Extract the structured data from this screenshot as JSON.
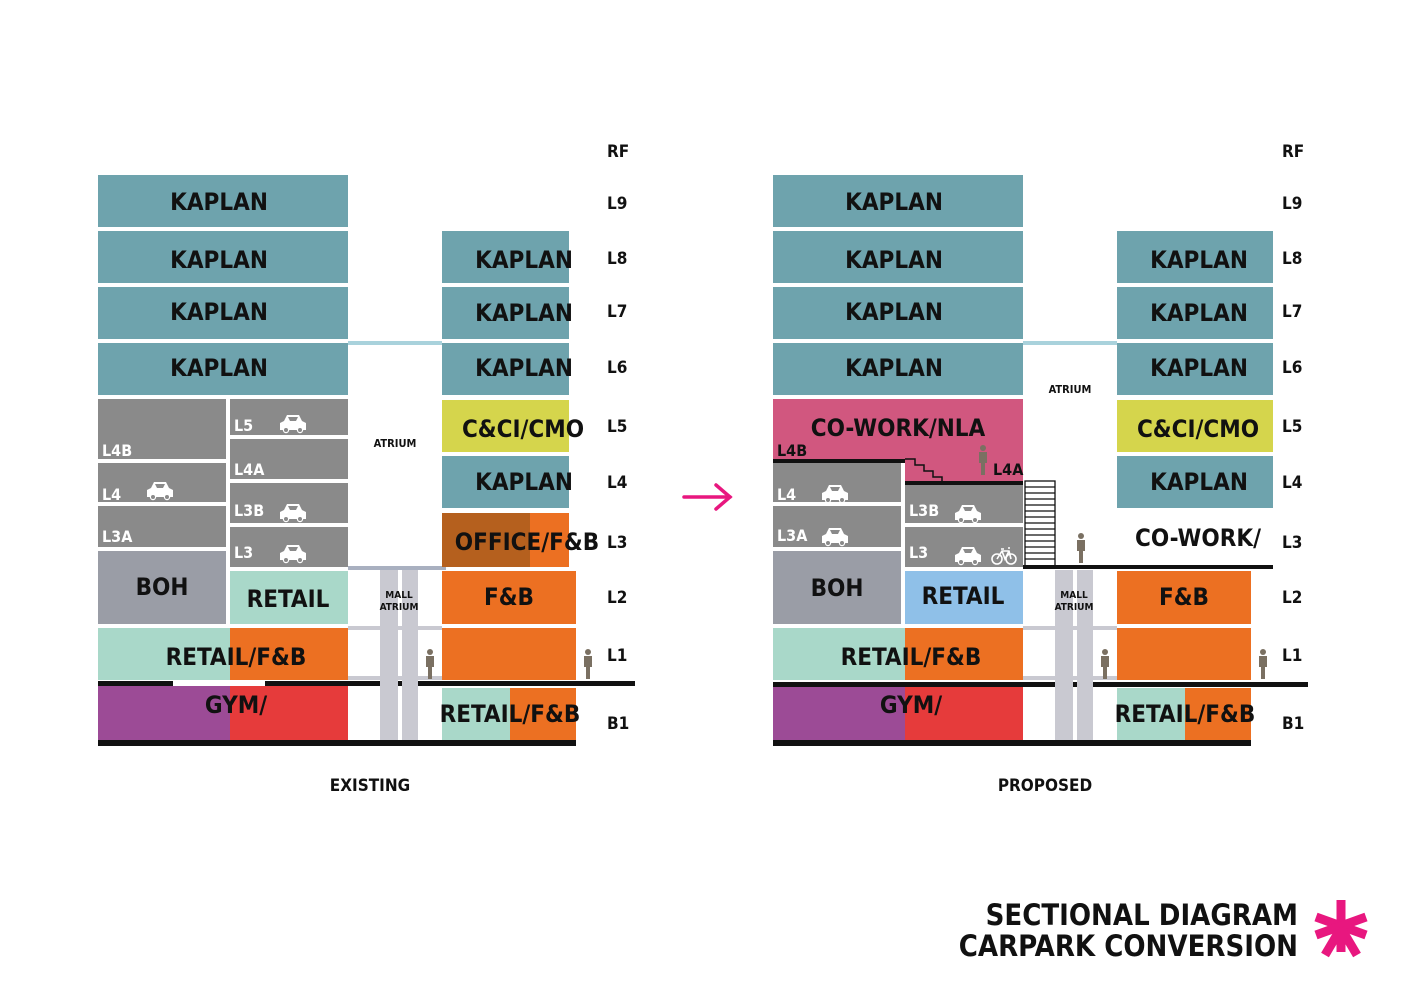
{
  "levels": [
    "RF",
    "L9",
    "L8",
    "L7",
    "L6",
    "L5",
    "L4",
    "L3",
    "L2",
    "L1",
    "B1"
  ],
  "existing": {
    "caption": "EXISTING",
    "block_labels": {
      "kaplan": "KAPLAN",
      "cci": "C&CI/CMO",
      "office_fb": "OFFICE/F&B",
      "fb": "F&B",
      "boh": "BOH",
      "retail": "RETAIL",
      "retail_fb": "RETAIL/F&B",
      "gym": "GYM/",
      "atrium": "ATRIUM",
      "mall_atrium_1": "MALL",
      "mall_atrium_2": "ATRIUM"
    },
    "carpark_labels": [
      "L4B",
      "L4",
      "L3A",
      "L5",
      "L4A",
      "L3B",
      "L3"
    ]
  },
  "proposed": {
    "caption": "PROPOSED",
    "block_labels": {
      "kaplan": "KAPLAN",
      "cci": "C&CI/CMO",
      "cowork_nla": "CO-WORK/NLA",
      "cowork": "CO-WORK/",
      "fb": "F&B",
      "boh": "BOH",
      "retail": "RETAIL",
      "retail_fb": "RETAIL/F&B",
      "gym": "GYM/",
      "atrium": "ATRIUM",
      "mall_atrium_1": "MALL",
      "mall_atrium_2": "ATRIUM"
    },
    "carpark_labels": [
      "L4B",
      "L4",
      "L3A",
      "L4A",
      "L3B",
      "L3"
    ]
  },
  "title": {
    "line1": "SECTIONAL DIAGRAM",
    "line2": "CARPARK CONVERSION"
  },
  "colors": {
    "kaplan": "#6ea3ad",
    "carpark": "#8a8a8a",
    "cci": "#d5d54c",
    "orange": "#ec7022",
    "office_dark": "#b5601e",
    "boh": "#9a9da6",
    "mint": "#a9d8c9",
    "gym_purple": "#9c4b96",
    "gym_red": "#e63b3b",
    "cowork_pink": "#d1577f",
    "retail_blue": "#8fc0e8",
    "atrium_grey": "#c9c9d1",
    "bridge": "#a9d2dc",
    "accent": "#e8177f"
  }
}
